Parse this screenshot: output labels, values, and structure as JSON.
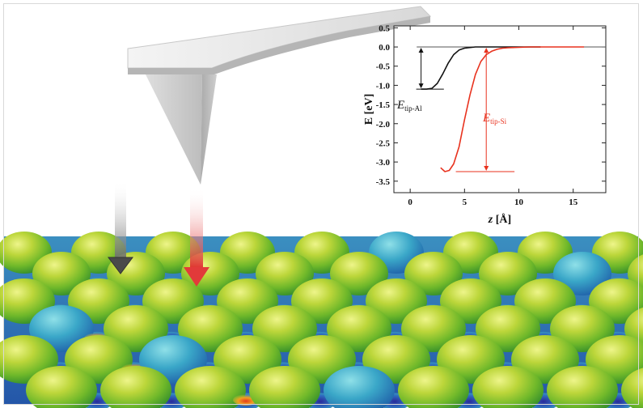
{
  "figure": {
    "inset": {
      "y_axis_label": "E [eV]",
      "x_axis_label_italic": "z",
      "x_axis_label_rest": " [Å]",
      "y_ticks": [
        "0.5",
        "0.0",
        "-0.5",
        "-1.0",
        "-1.5",
        "-2.0",
        "-2.5",
        "-3.0",
        "-3.5"
      ],
      "x_ticks": [
        "0",
        "5",
        "10",
        "15"
      ],
      "label_al_main": "E",
      "label_al_sub": "tip-Al",
      "label_si_main": "E",
      "label_si_sub": "tip-Si"
    },
    "colors": {
      "al_curve": "#111111",
      "si_curve": "#e8321e",
      "probe_arrow_al": "#4a4a4a",
      "probe_arrow_si": "#e23a3a"
    }
  },
  "chart_data": {
    "type": "line",
    "xlabel": "z [Å]",
    "ylabel": "E [eV]",
    "xlim": [
      -1.5,
      18
    ],
    "ylim": [
      -3.8,
      0.55
    ],
    "series": [
      {
        "name": "E tip-Al",
        "x": [
          1.0,
          1.5,
          2.0,
          2.5,
          3.0,
          3.5,
          4.0,
          4.5,
          5.0,
          6.0,
          7.0,
          8.0,
          10.0,
          12.0
        ],
        "y": [
          -1.1,
          -1.1,
          -1.08,
          -0.95,
          -0.7,
          -0.42,
          -0.2,
          -0.08,
          -0.03,
          0.0,
          0.0,
          0.0,
          0.0,
          0.0
        ]
      },
      {
        "name": "E tip-Si",
        "x": [
          2.8,
          3.2,
          3.6,
          4.0,
          4.5,
          5.0,
          5.5,
          6.0,
          6.5,
          7.0,
          7.5,
          8.0,
          8.5,
          9.0,
          10.0,
          11.0,
          12.0,
          14.0,
          16.0
        ],
        "y": [
          -3.15,
          -3.25,
          -3.22,
          -3.05,
          -2.6,
          -1.9,
          -1.25,
          -0.72,
          -0.38,
          -0.2,
          -0.11,
          -0.06,
          -0.03,
          -0.02,
          -0.01,
          0.0,
          0.0,
          0.0,
          0.0
        ]
      }
    ],
    "annotations": [
      {
        "label": "E tip-Al",
        "from_y": 0.0,
        "to_y": -1.1,
        "at_x": 1.0
      },
      {
        "label": "E tip-Si",
        "from_y": 0.0,
        "to_y": -3.25,
        "at_x": 7.0
      }
    ]
  }
}
